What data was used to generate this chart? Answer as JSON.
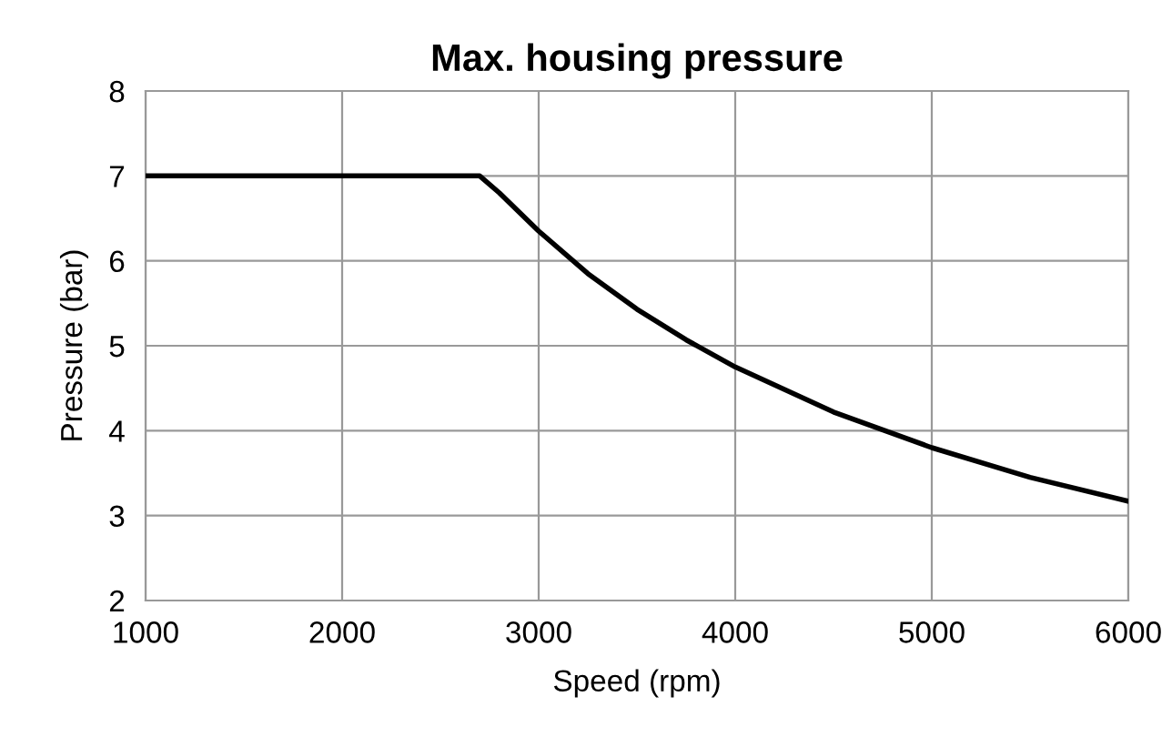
{
  "chart_data": {
    "type": "line",
    "title": "Max. housing pressure",
    "xlabel": "Speed (rpm)",
    "ylabel": "Pressure (bar)",
    "series": [
      {
        "color": "#000000",
        "x": [
          1000,
          2700,
          2800,
          3000,
          3250,
          3500,
          3750,
          4000,
          4500,
          5000,
          5500,
          6000
        ],
        "values": [
          7,
          7,
          6.8,
          6.35,
          5.85,
          5.43,
          5.07,
          4.75,
          4.22,
          3.8,
          3.45,
          3.17
        ]
      }
    ],
    "xlim": [
      1000,
      6000
    ],
    "xticks": [
      1000,
      2000,
      3000,
      4000,
      5000,
      6000
    ],
    "ylim": [
      2,
      8
    ],
    "yticks": [
      2,
      3,
      4,
      5,
      6,
      7,
      8
    ],
    "grid": true,
    "marker": "none",
    "line_style": "solid"
  }
}
